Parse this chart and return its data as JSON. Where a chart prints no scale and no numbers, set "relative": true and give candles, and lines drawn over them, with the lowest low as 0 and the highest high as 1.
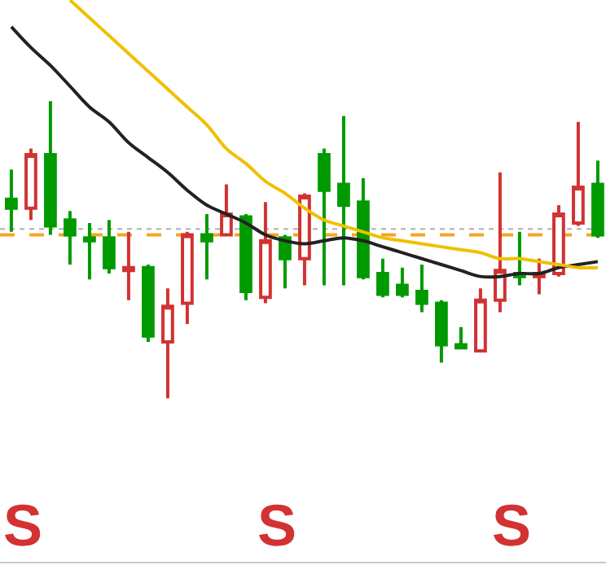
{
  "chart_data": {
    "type": "candlestick",
    "relative": true,
    "colors": [
      "#009a00",
      "#d23232",
      "#009a00",
      "#009a00",
      "#009a00",
      "#009a00",
      "#d23232",
      "#009a00",
      "#d23232",
      "#d23232",
      "#009a00",
      "#d23232",
      "#009a00",
      "#d23232",
      "#009a00",
      "#d23232",
      "#009a00",
      "#009a00",
      "#009a00",
      "#009a00",
      "#009a00",
      "#009a00",
      "#009a00",
      "#009a00",
      "#d23232",
      "#d23232",
      "#009a00",
      "#d23232",
      "#d23232",
      "#d23232",
      "#009a00"
    ],
    "categories": [
      null,
      null,
      null,
      null,
      null,
      null,
      null,
      null,
      null,
      null,
      null,
      null,
      null,
      null,
      null,
      null,
      null,
      null,
      null,
      null,
      null,
      null,
      null,
      null,
      null,
      null,
      null,
      null,
      null,
      null,
      null
    ],
    "ohlc": [
      [
        0.67,
        0.77,
        0.56,
        0.64
      ],
      [
        0.64,
        0.84,
        0.6,
        0.82
      ],
      [
        0.82,
        1.0,
        0.55,
        0.58
      ],
      [
        0.6,
        0.63,
        0.45,
        0.55
      ],
      [
        0.54,
        0.59,
        0.4,
        0.53
      ],
      [
        0.54,
        0.6,
        0.42,
        0.44
      ],
      [
        0.43,
        0.56,
        0.33,
        0.44
      ],
      [
        0.44,
        0.45,
        0.19,
        0.21
      ],
      [
        0.19,
        0.37,
        0.0,
        0.31
      ],
      [
        0.32,
        0.56,
        0.25,
        0.55
      ],
      [
        0.55,
        0.62,
        0.4,
        0.53
      ],
      [
        0.55,
        0.72,
        0.55,
        0.62
      ],
      [
        0.61,
        0.62,
        0.33,
        0.36
      ],
      [
        0.34,
        0.66,
        0.32,
        0.53
      ],
      [
        0.54,
        0.55,
        0.37,
        0.47
      ],
      [
        0.47,
        0.69,
        0.38,
        0.68
      ],
      [
        0.82,
        0.84,
        0.38,
        0.7
      ],
      [
        0.72,
        0.95,
        0.38,
        0.65
      ],
      [
        0.66,
        0.74,
        0.4,
        0.41
      ],
      [
        0.42,
        0.47,
        0.34,
        0.35
      ],
      [
        0.38,
        0.44,
        0.34,
        0.35
      ],
      [
        0.36,
        0.45,
        0.29,
        0.32
      ],
      [
        0.32,
        0.33,
        0.12,
        0.18
      ],
      [
        0.18,
        0.24,
        0.17,
        0.17
      ],
      [
        0.16,
        0.37,
        0.16,
        0.33
      ],
      [
        0.33,
        0.76,
        0.29,
        0.43
      ],
      [
        0.42,
        0.56,
        0.38,
        0.41
      ],
      [
        0.41,
        0.47,
        0.35,
        0.42
      ],
      [
        0.42,
        0.65,
        0.41,
        0.62
      ],
      [
        0.59,
        0.93,
        0.58,
        0.71
      ],
      [
        0.72,
        0.8,
        0.54,
        0.55
      ]
    ],
    "series": [
      {
        "type": "line",
        "color": "#222222",
        "values": [
          1.25,
          1.18,
          1.12,
          1.05,
          0.98,
          0.93,
          0.86,
          0.81,
          0.76,
          0.7,
          0.65,
          0.62,
          0.59,
          0.55,
          0.53,
          0.52,
          0.53,
          0.54,
          0.53,
          0.51,
          0.49,
          0.47,
          0.45,
          0.43,
          0.41,
          0.41,
          0.42,
          0.42,
          0.44,
          0.45,
          0.46
        ]
      },
      {
        "type": "line",
        "color": "#f0c000",
        "values": [
          null,
          null,
          null,
          1.34,
          1.28,
          1.22,
          1.16,
          1.1,
          1.04,
          0.98,
          0.92,
          0.84,
          0.79,
          0.73,
          0.69,
          0.64,
          0.6,
          0.58,
          0.56,
          0.54,
          0.53,
          0.52,
          0.51,
          0.5,
          0.49,
          0.47,
          0.47,
          0.46,
          0.45,
          0.44,
          0.44
        ]
      }
    ],
    "ref_lines": [
      {
        "axis": "y",
        "value": 0.55,
        "color": "#f5a623",
        "line_style": "dashed"
      },
      {
        "axis": "y",
        "value": 0.57,
        "color": "#b0b0b0",
        "line_style": "dotted"
      }
    ],
    "annotations": [
      "S",
      "S",
      "S"
    ],
    "grid": false,
    "tick_labels": false
  }
}
